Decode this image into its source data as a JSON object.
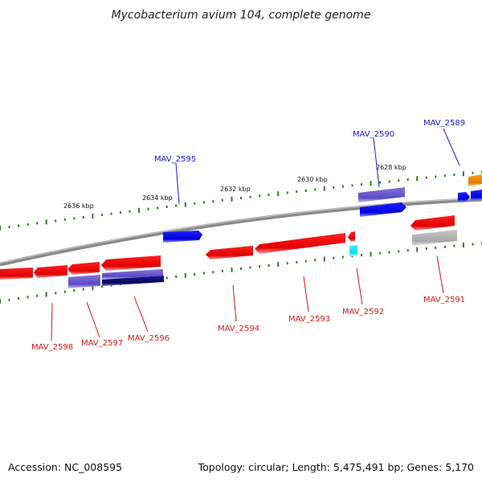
{
  "title": "Mycobacterium avium 104, complete genome",
  "footer": {
    "accession": "Accession: NC_008595",
    "topology": "Topology: circular; Length: 5,475,491 bp; Genes: 5,170"
  },
  "colors": {
    "backbone": "#8a8a8a",
    "ticks": "#2e7d1e",
    "red": "#e81010",
    "blue": "#0a0ae8",
    "slate": "#6f5fd0",
    "navy": "#0c0c7a",
    "cyan": "#14e8f0",
    "orange": "#f08c0a",
    "gray": "#b4b4b4",
    "label_blue": "#1a1ad0",
    "label_red": "#d01a1a"
  },
  "scale_labels": [
    "2636 kbp",
    "2634 kbp",
    "2632 kbp",
    "2630 kbp",
    "2628 kbp"
  ],
  "genes": [
    {
      "id": "MAV_2598",
      "color": "red"
    },
    {
      "id": "MAV_2597",
      "color": "slate"
    },
    {
      "id": "MAV_2596",
      "color": "navy"
    },
    {
      "id": "MAV_2595",
      "color": "blue"
    },
    {
      "id": "MAV_2594",
      "color": "red"
    },
    {
      "id": "MAV_2593",
      "color": "red"
    },
    {
      "id": "MAV_2592",
      "color": "cyan"
    },
    {
      "id": "MAV_2591",
      "color": "gray"
    },
    {
      "id": "MAV_2590",
      "color": "slate"
    },
    {
      "id": "MAV_2589",
      "color": "blue"
    }
  ]
}
